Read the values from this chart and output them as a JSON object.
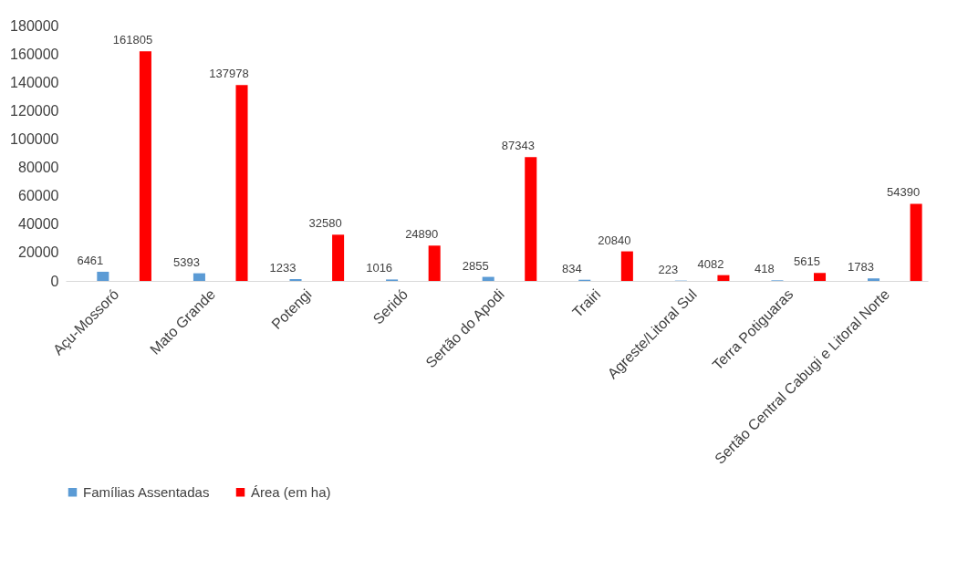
{
  "chart_data": {
    "type": "bar",
    "categories": [
      "Açu-Mossoró",
      "Mato Grande",
      "Potengi",
      "Seridó",
      "Sertão do Apodi",
      "Trairi",
      "Agreste/Litoral Sul",
      "Terra Potiguaras",
      "Sertão Central Cabugi e Litoral Norte"
    ],
    "series": [
      {
        "name": "Famílias Assentadas",
        "color": "#5b9bd5",
        "values": [
          6461,
          5393,
          1233,
          1016,
          2855,
          834,
          223,
          418,
          1783
        ]
      },
      {
        "name": "Área (em ha)",
        "color": "#ff0000",
        "values": [
          161805,
          137978,
          32580,
          24890,
          87343,
          20840,
          4082,
          5615,
          54390
        ]
      }
    ],
    "ylim": [
      0,
      180000
    ],
    "yticks": [
      0,
      20000,
      40000,
      60000,
      80000,
      100000,
      120000,
      140000,
      160000,
      180000
    ],
    "grid": false,
    "legend": "bottom",
    "data_labels": true
  }
}
